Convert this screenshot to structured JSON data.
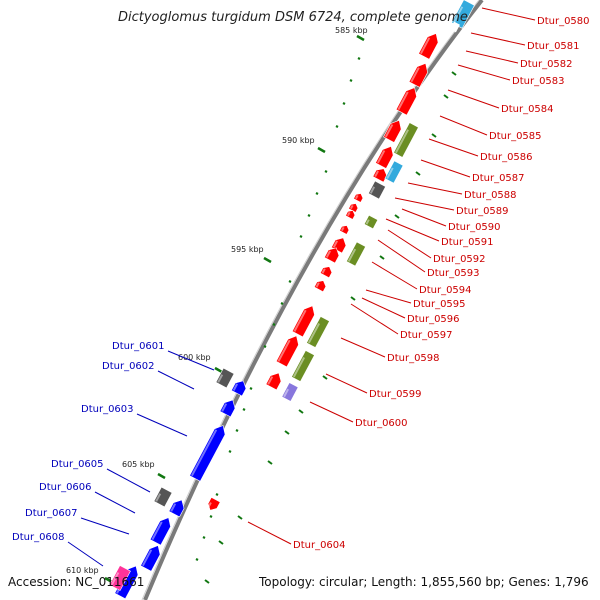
{
  "title": "Dictyoglomus turgidum DSM 6724, complete genome",
  "footer": {
    "accession": "Accession: NC_011661",
    "topology": "Topology: circular; Length: 1,855,560 bp; Genes: 1,796"
  },
  "colors": {
    "forward": "#ff0000",
    "reverse": "#0000ff",
    "olive": "#6b8e23",
    "gray": "#555555",
    "cyan": "#33aadd",
    "lavender": "#8877dd",
    "label_forward": "#cc0000",
    "label_reverse": "#0000bb",
    "tick": "#117711"
  },
  "ticks": [
    "585 kbp",
    "590 kbp",
    "595 kbp",
    "600 kbp",
    "605 kbp",
    "610 kbp"
  ],
  "genes_right": [
    "Dtur_0580",
    "Dtur_0581",
    "Dtur_0582",
    "Dtur_0583",
    "Dtur_0584",
    "Dtur_0585",
    "Dtur_0586",
    "Dtur_0587",
    "Dtur_0588",
    "Dtur_0589",
    "Dtur_0590",
    "Dtur_0591",
    "Dtur_0592",
    "Dtur_0593",
    "Dtur_0594",
    "Dtur_0595",
    "Dtur_0596",
    "Dtur_0597",
    "Dtur_0598",
    "Dtur_0599",
    "Dtur_0600",
    "Dtur_0604"
  ],
  "genes_left": [
    "Dtur_0601",
    "Dtur_0602",
    "Dtur_0603",
    "Dtur_0605",
    "Dtur_0606",
    "Dtur_0607",
    "Dtur_0608"
  ]
}
